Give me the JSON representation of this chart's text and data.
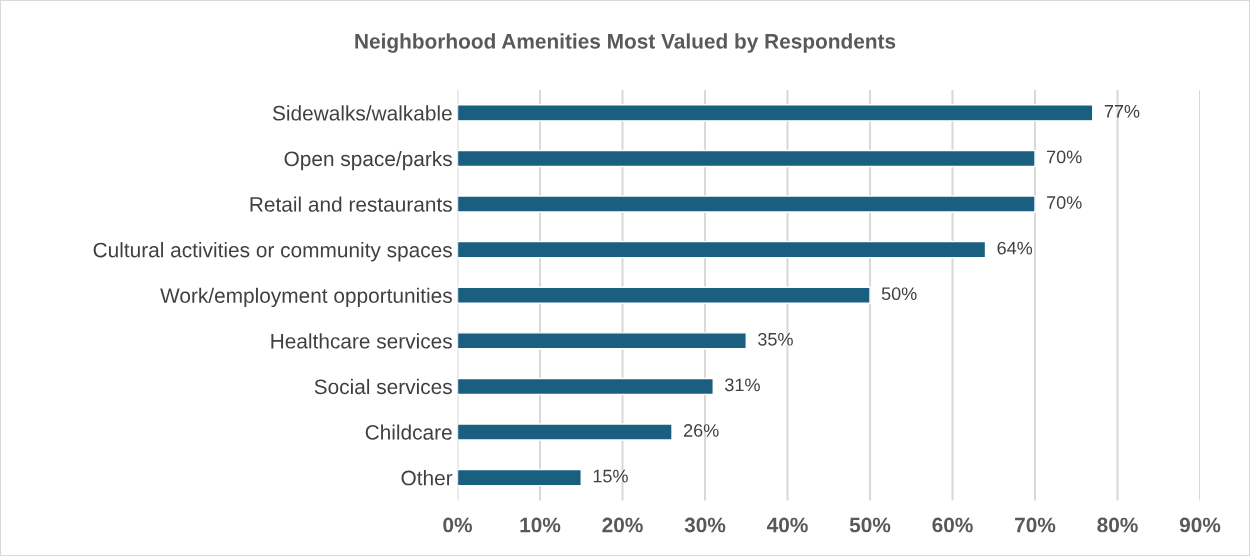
{
  "chart_data": {
    "type": "bar",
    "orientation": "horizontal",
    "title": "Neighborhood Amenities Most Valued by Respondents",
    "categories": [
      "Sidewalks/walkable",
      "Open space/parks",
      "Retail and restaurants",
      "Cultural activities or community spaces",
      "Work/employment opportunities",
      "Healthcare services",
      "Social services",
      "Childcare",
      "Other"
    ],
    "values": [
      77,
      70,
      70,
      64,
      50,
      35,
      31,
      26,
      15
    ],
    "value_labels": [
      "77%",
      "70%",
      "70%",
      "64%",
      "50%",
      "35%",
      "31%",
      "26%",
      "15%"
    ],
    "color": "#1a5e80",
    "xlim": [
      0,
      90
    ],
    "xticks": [
      {
        "value": 0,
        "label": "0%"
      },
      {
        "value": 10,
        "label": "10%"
      },
      {
        "value": 20,
        "label": "20%"
      },
      {
        "value": 30,
        "label": "30%"
      },
      {
        "value": 40,
        "label": "40%"
      },
      {
        "value": 50,
        "label": "50%"
      },
      {
        "value": 60,
        "label": "60%"
      },
      {
        "value": 70,
        "label": "70%"
      },
      {
        "value": 80,
        "label": "80%"
      },
      {
        "value": 90,
        "label": "90%"
      }
    ],
    "grid": "x",
    "legend": false
  }
}
